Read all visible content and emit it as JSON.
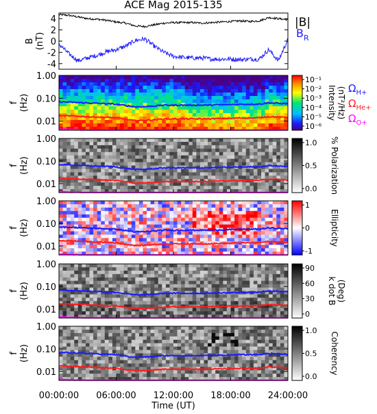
{
  "title": "ACE Mag 2015-135",
  "xlabel": "Time (UT)",
  "x_ticks": [
    "00:00:00",
    "06:00:00",
    "12:00:00",
    "18:00:00",
    "24:00:00"
  ],
  "legend": {
    "mag_total": "|B|",
    "mag_radial": "B",
    "mag_radial_sub": "R",
    "omega": "Ω",
    "h_sub": "H+",
    "he_sub": "He+",
    "o_sub": "O+"
  },
  "colors": {
    "total": "#000000",
    "radial": "#1a1aff",
    "h_plus": "#1a1aff",
    "he_plus": "#ff1a1a",
    "o_plus": "#ff00ff"
  },
  "panels": {
    "mag": {
      "ylabel_top": "B",
      "ylabel_bottom": "(nT)",
      "y_ticks": [
        "4",
        "2",
        "0",
        "-2",
        "-4"
      ]
    },
    "freq_ylabel_top": "f",
    "freq_ylabel_bottom": "(Hz)",
    "freq_ticks": [
      "1.00",
      "0.10",
      "0.01"
    ],
    "intensity": {
      "bar_title": "Intensity",
      "bar_units": "(nT²/Hz)",
      "bar_ticks": [
        "10⁻¹",
        "10⁻²",
        "10⁻³",
        "10⁻⁴",
        "10⁻⁵",
        "10⁻⁶"
      ]
    },
    "polarization": {
      "bar_title": "% Polarization",
      "bar_ticks": [
        "1.0",
        "0.5",
        "0.0"
      ]
    },
    "ellipticity": {
      "bar_title": "Ellipticity",
      "bar_ticks": [
        "1",
        "0",
        "-1"
      ]
    },
    "kdotb": {
      "bar_title": "k dot B",
      "bar_units": "(Deg)",
      "bar_ticks": [
        "90",
        "60",
        "30",
        "0"
      ]
    },
    "coherency": {
      "bar_title": "Coherency",
      "bar_ticks": [
        "1.0",
        "0.5",
        "0.0"
      ]
    }
  },
  "chart_data": [
    {
      "type": "line",
      "title": "ACE Mag 2015-135",
      "xlabel": "Time (UT)",
      "ylabel": "B (nT)",
      "xlim": [
        0,
        24
      ],
      "ylim": [
        -5,
        5
      ],
      "x": [
        0,
        1,
        2,
        3,
        4,
        5,
        6,
        7,
        8,
        9,
        10,
        11,
        12,
        13,
        14,
        15,
        16,
        17,
        18,
        19,
        20,
        21,
        22,
        23,
        24
      ],
      "series": [
        {
          "name": "|B|",
          "values": [
            4.7,
            4.6,
            4.3,
            4.0,
            3.9,
            3.7,
            3.4,
            3.2,
            2.7,
            2.6,
            2.9,
            3.2,
            3.3,
            3.3,
            3.3,
            3.2,
            3.3,
            3.4,
            3.5,
            3.6,
            3.5,
            3.6,
            4.2,
            4.0,
            3.8
          ]
        },
        {
          "name": "B_R",
          "values": [
            -0.5,
            -2.2,
            -3.5,
            -3.0,
            -2.5,
            -1.9,
            -1.5,
            -0.9,
            0.1,
            0.4,
            -0.9,
            -2.0,
            -2.7,
            -2.9,
            -3.0,
            -3.0,
            -3.2,
            -3.2,
            -3.2,
            -3.3,
            -3.2,
            -3.2,
            -1.5,
            -3.5,
            0.3
          ]
        }
      ]
    },
    {
      "type": "heatmap",
      "title": "",
      "xlabel": "Time (UT)",
      "ylabel": "f (Hz)",
      "xlim": [
        0,
        24
      ],
      "ylim": [
        0.004,
        1.0
      ],
      "y_scale": "log",
      "x": [
        0,
        1,
        2,
        3,
        4,
        5,
        6,
        7,
        8,
        9,
        10,
        11,
        12,
        13,
        14,
        15,
        16,
        17,
        18,
        19,
        20,
        21,
        22,
        23,
        24
      ],
      "series": [
        {
          "name": "ΩH+",
          "values": [
            0.07,
            0.068,
            0.065,
            0.062,
            0.06,
            0.058,
            0.055,
            0.048,
            0.042,
            0.043,
            0.046,
            0.05,
            0.05,
            0.05,
            0.05,
            0.05,
            0.051,
            0.052,
            0.053,
            0.055,
            0.055,
            0.056,
            0.063,
            0.06,
            0.058
          ]
        },
        {
          "name": "ΩHe+",
          "values": [
            0.0175,
            0.017,
            0.0163,
            0.0155,
            0.015,
            0.0145,
            0.0138,
            0.012,
            0.0105,
            0.0108,
            0.0115,
            0.0125,
            0.0125,
            0.0125,
            0.0125,
            0.0125,
            0.0127,
            0.013,
            0.0133,
            0.0137,
            0.0138,
            0.014,
            0.0158,
            0.015,
            0.0145
          ]
        },
        {
          "name": "ΩO+",
          "values": [
            0.0044,
            0.0043,
            0.0041,
            0.0039,
            0.0038,
            0.0036,
            0.0035,
            0.003,
            0.0026,
            0.0027,
            0.0029,
            0.0031,
            0.0031,
            0.0031,
            0.0031,
            0.0031,
            0.0032,
            0.0033,
            0.0033,
            0.0034,
            0.0034,
            0.0035,
            0.0039,
            0.0038,
            0.0036
          ]
        }
      ]
    }
  ]
}
